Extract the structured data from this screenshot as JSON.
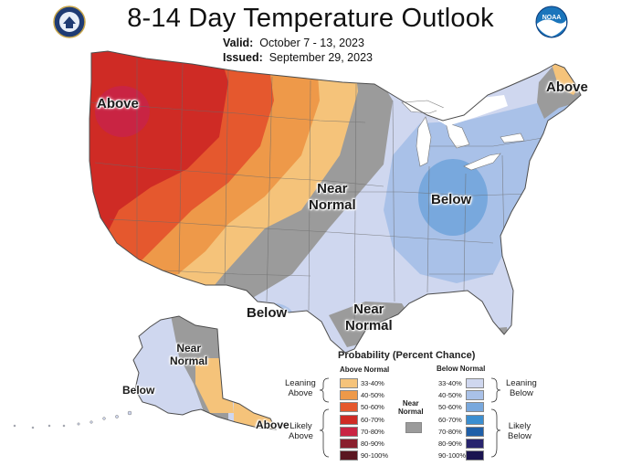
{
  "title": "8-14 Day Temperature Outlook",
  "valid_label": "Valid:",
  "valid_value": "October 7 - 13, 2023",
  "issued_label": "Issued:",
  "issued_value": "September 29, 2023",
  "logos": {
    "left": "doc-seal-icon",
    "right_text": "NOAA"
  },
  "map_labels": {
    "above_west": "Above",
    "above_maine": "Above",
    "near_normal_plains": "Near\nNormal",
    "below_ohio": "Below",
    "below_texas": "Below",
    "near_normal_gulf": "Near\nNormal",
    "near_normal_alaska": "Near\nNormal",
    "below_alaska": "Below",
    "above_alaska": "Above"
  },
  "legend": {
    "title": "Probability (Percent Chance)",
    "above_header": "Above Normal",
    "below_header": "Below Normal",
    "near_normal": "Near\nNormal",
    "leaning_above": "Leaning\nAbove",
    "likely_above": "Likely\nAbove",
    "leaning_below": "Leaning\nBelow",
    "likely_below": "Likely\nBelow",
    "above_items": [
      {
        "range": "33-40%",
        "color": "#f5c37a"
      },
      {
        "range": "40-50%",
        "color": "#ee9949"
      },
      {
        "range": "50-60%",
        "color": "#e5582e"
      },
      {
        "range": "60-70%",
        "color": "#cf2b25"
      },
      {
        "range": "70-80%",
        "color": "#c92443"
      },
      {
        "range": "80-90%",
        "color": "#8a1f2d"
      },
      {
        "range": "90-100%",
        "color": "#5a1620"
      }
    ],
    "below_items": [
      {
        "range": "33-40%",
        "color": "#cfd7ef"
      },
      {
        "range": "40-50%",
        "color": "#a9c1e8"
      },
      {
        "range": "50-60%",
        "color": "#78a8dd"
      },
      {
        "range": "60-70%",
        "color": "#3b8ed0"
      },
      {
        "range": "70-80%",
        "color": "#1f5fa8"
      },
      {
        "range": "80-90%",
        "color": "#28246e"
      },
      {
        "range": "90-100%",
        "color": "#1a1450"
      }
    ],
    "near_normal_color": "#9b9b9b"
  },
  "colors": {
    "above_33_40": "#f5c37a",
    "above_40_50": "#ee9949",
    "above_50_60": "#e5582e",
    "above_60_70": "#cf2b25",
    "above_70_80": "#c92443",
    "below_33_40": "#cfd7ef",
    "below_40_50": "#a9c1e8",
    "below_50_60": "#78a8dd",
    "near_normal": "#9b9b9b"
  }
}
